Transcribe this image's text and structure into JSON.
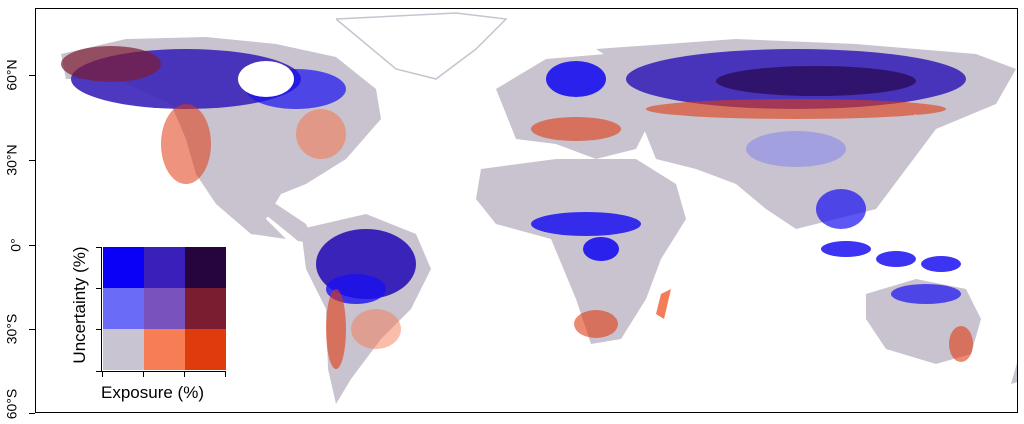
{
  "map": {
    "latitude_labels": [
      "60°N",
      "30°N",
      "0°",
      "30°S",
      "60°S"
    ],
    "latitudes": [
      60,
      30,
      0,
      -30,
      -60
    ],
    "lat_range": [
      -65,
      85
    ],
    "lon_range": [
      -180,
      180
    ],
    "colors": {
      "ocean": "#ffffff",
      "land_base": "#c8c3cf",
      "low_uncert_high_exp": "#e03a12",
      "low_uncert_mid_exp": "#f47c56",
      "high_uncert_low_exp": "#1a10f0",
      "high_uncert_mid_exp": "#3a23b8",
      "high_uncert_high_exp": "#25054a",
      "mid_uncert_low_exp": "#6b6cf8",
      "mid_uncert_mid_exp": "#7b55be",
      "mid_uncert_high_exp": "#7c1d33"
    }
  },
  "legend": {
    "x_label": "Exposure (%)",
    "y_label": "Uncertainty (%)",
    "grid_colors": [
      [
        "#0a00f7",
        "#3a1fba",
        "#26053f"
      ],
      [
        "#6a6bf7",
        "#7a52bd",
        "#7a1d30"
      ],
      [
        "#c9c4d1",
        "#f77d55",
        "#df3b0c"
      ]
    ]
  }
}
